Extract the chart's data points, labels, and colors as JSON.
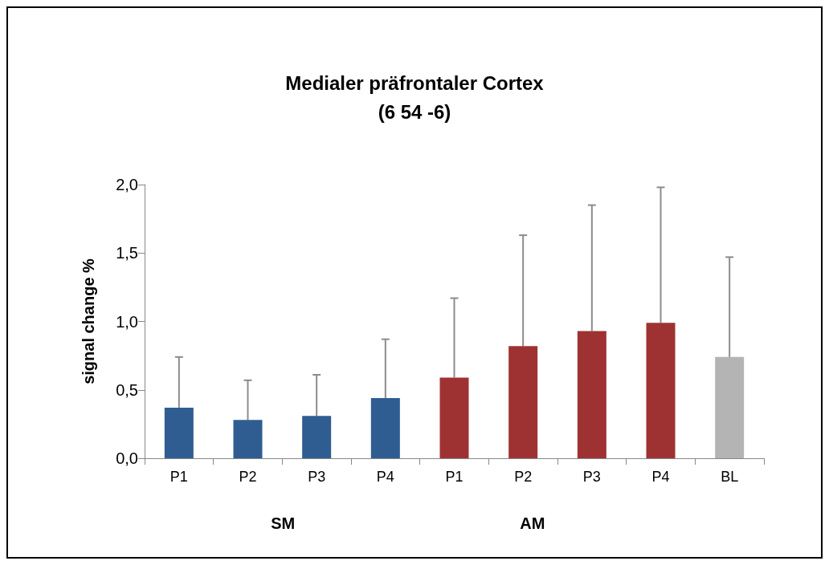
{
  "chart_data": {
    "type": "bar",
    "title": "Medialer präfrontaler Cortex\n(6 54 -6)",
    "ylabel": "signal change %",
    "categories": [
      "P1",
      "P2",
      "P3",
      "P4",
      "P1",
      "P2",
      "P3",
      "P4",
      "BL"
    ],
    "values": [
      0.37,
      0.28,
      0.31,
      0.44,
      0.59,
      0.82,
      0.93,
      0.99,
      0.74
    ],
    "colors": [
      "#2f5d91",
      "#2f5d91",
      "#2f5d91",
      "#2f5d91",
      "#9e3232",
      "#9e3232",
      "#9e3232",
      "#9e3232",
      "#b4b4b4"
    ],
    "errors": [
      [
        0.37,
        0.74
      ],
      [
        0.28,
        0.57
      ],
      [
        0.31,
        0.61
      ],
      [
        0.44,
        0.87
      ],
      [
        0.59,
        1.17
      ],
      [
        0.82,
        1.63
      ],
      [
        0.93,
        1.85
      ],
      [
        0.99,
        1.98
      ],
      [
        0.74,
        1.47
      ]
    ],
    "annotations": [
      "SM",
      "AM"
    ],
    "ylim": [
      0,
      2
    ],
    "yticks": [
      {
        "value": 0,
        "label": "0,0"
      },
      {
        "value": 0.5,
        "label": "0,5"
      },
      {
        "value": 1,
        "label": "1,0"
      },
      {
        "value": 1.5,
        "label": "1,5"
      },
      {
        "value": 2,
        "label": "2,0"
      }
    ],
    "grid": false
  }
}
